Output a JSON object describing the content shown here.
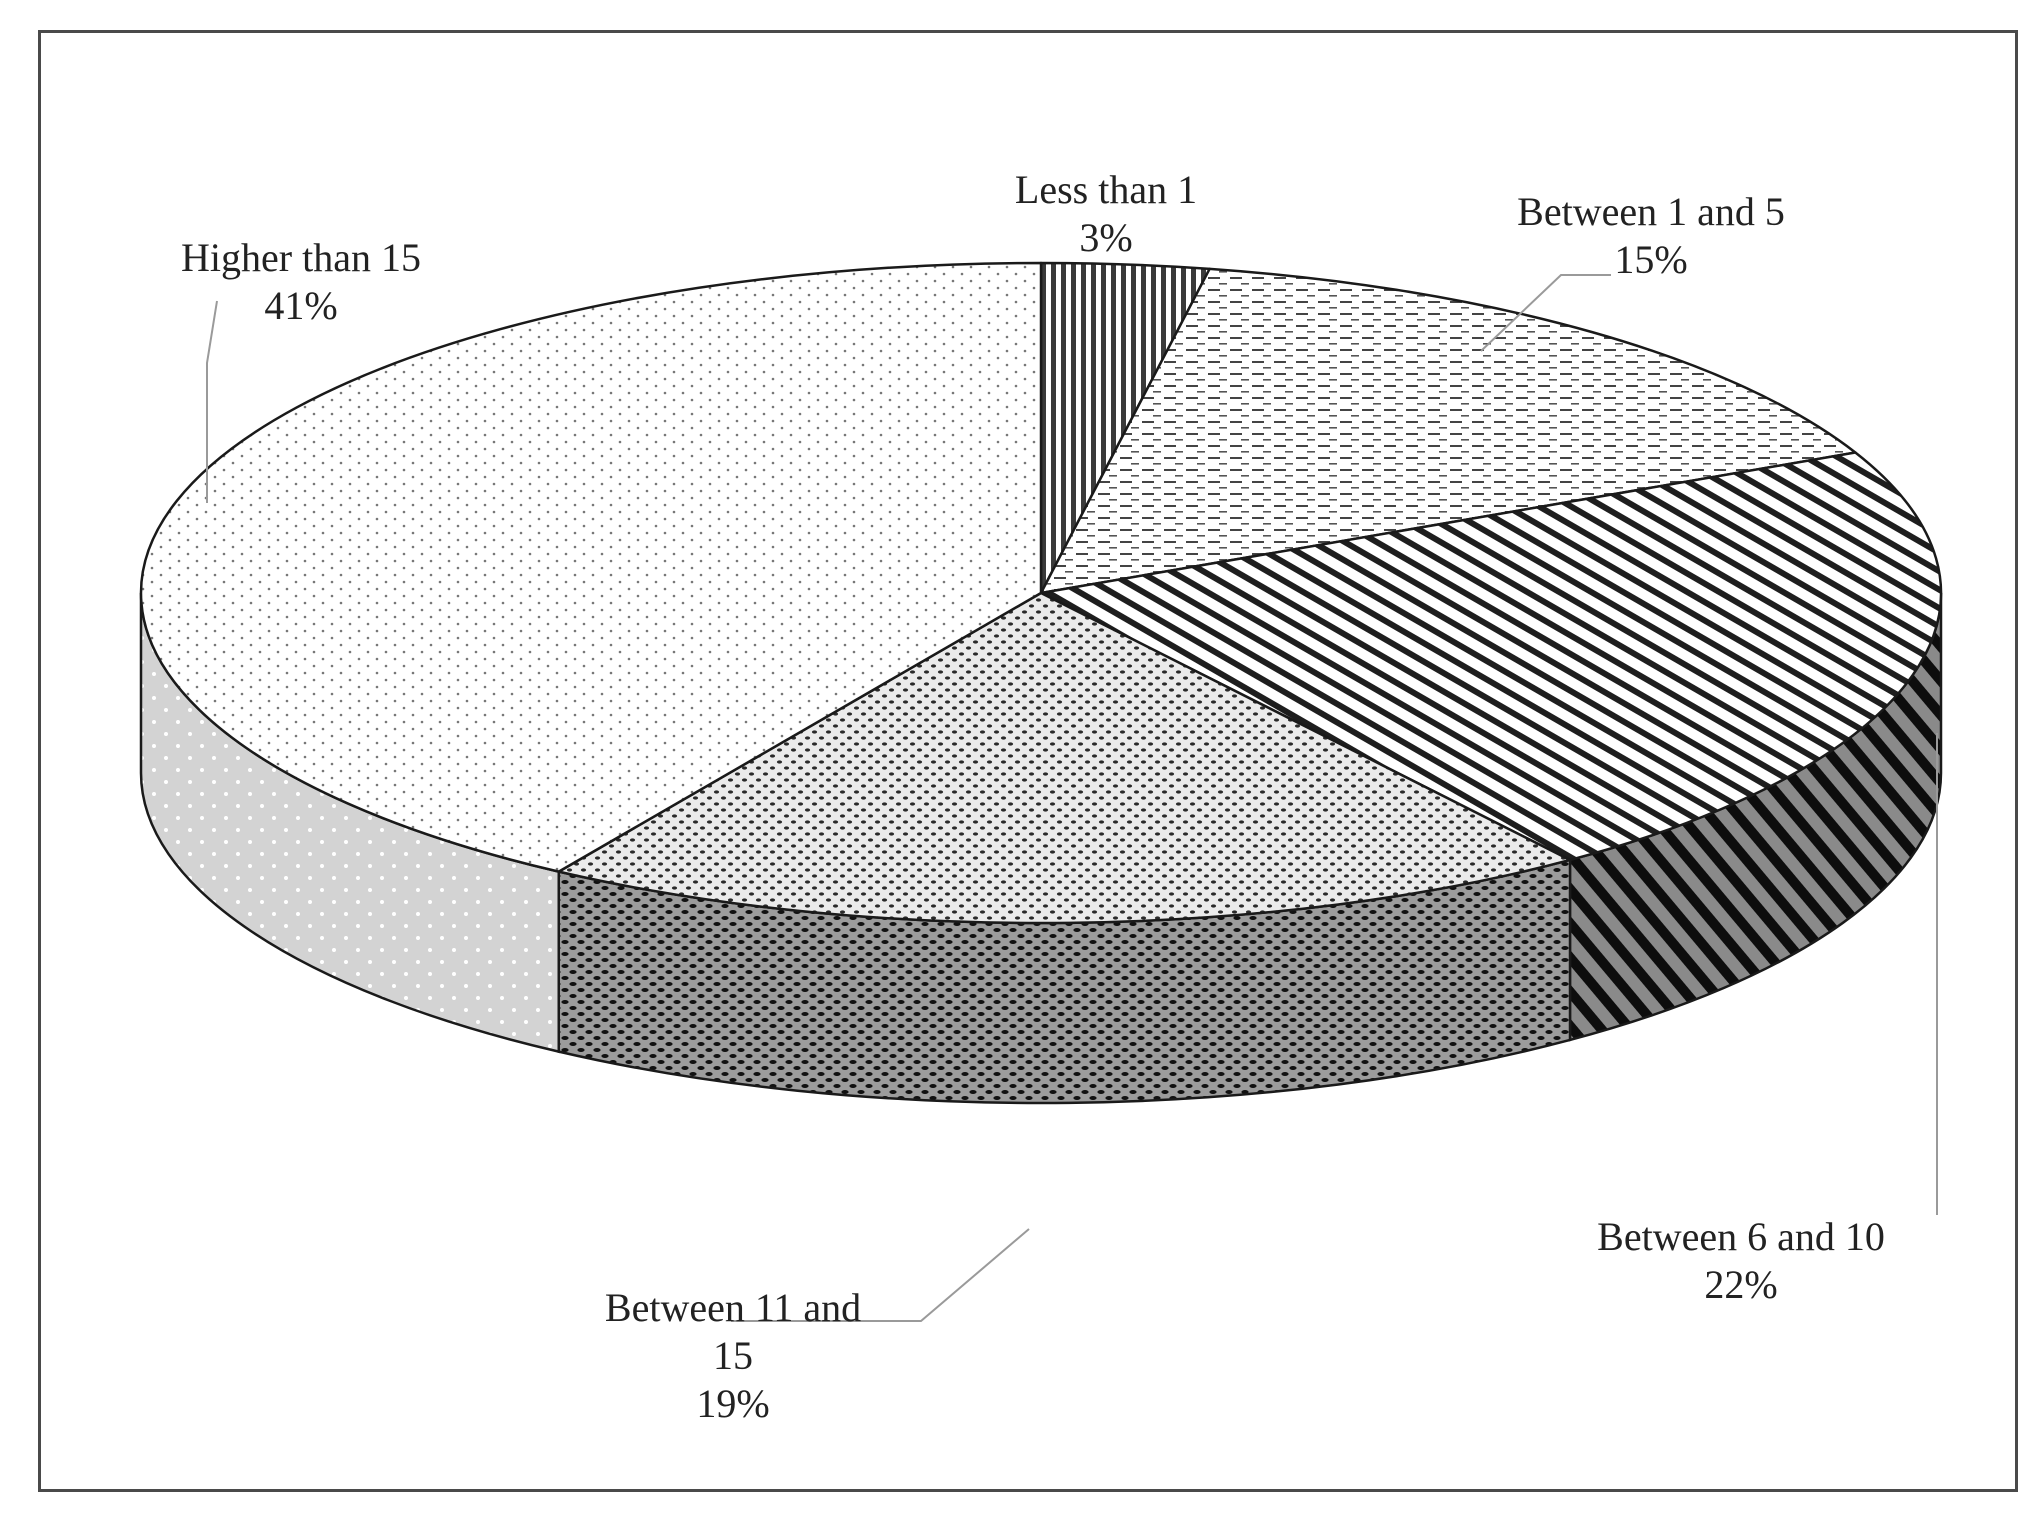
{
  "chart_data": {
    "type": "pie",
    "title": "",
    "style": "3d",
    "legend": "none",
    "slices": [
      {
        "name": "Less than 1",
        "label_lines": [
          "Less than 1"
        ],
        "value": 3,
        "pct_label": "3%",
        "pattern": "vertical-dense"
      },
      {
        "name": "Between 1 and 5",
        "label_lines": [
          "Between 1 and 5"
        ],
        "value": 15,
        "pct_label": "15%",
        "pattern": "horizontal-dash"
      },
      {
        "name": "Between 6 and 10",
        "label_lines": [
          "Between 6 and 10"
        ],
        "value": 22,
        "pct_label": "22%",
        "pattern": "diagonal"
      },
      {
        "name": "Between 11 and 15",
        "label_lines": [
          "Between 11 and",
          "15"
        ],
        "value": 19,
        "pct_label": "19%",
        "pattern": "speckle"
      },
      {
        "name": "Higher than 15",
        "label_lines": [
          "Higher than 15"
        ],
        "value": 41,
        "pct_label": "41%",
        "pattern": "dots-light"
      }
    ]
  }
}
